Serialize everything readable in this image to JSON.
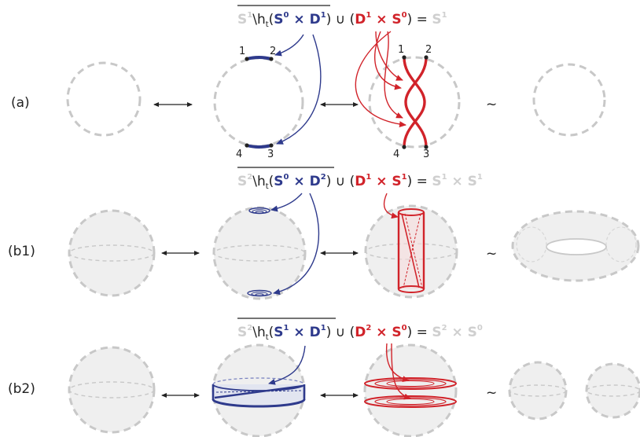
{
  "rows": [
    {
      "label": "(a)",
      "equation": {
        "complement_space": "S",
        "complement_space_sup": "1",
        "setminus": "\\h",
        "h_sub": "t",
        "removed_open": "(",
        "removed_factor1": "S",
        "removed_factor1_sup": "0",
        "removed_times": " × ",
        "removed_factor2": "D",
        "removed_factor2_sup": "1",
        "removed_close": ")",
        "union": " ∪ (",
        "glued_factor1": "D",
        "glued_factor1_sup": "1",
        "glued_times": " × ",
        "glued_factor2": "S",
        "glued_factor2_sup": "0",
        "glued_close": ")",
        "equals": " = ",
        "result": "S",
        "result_sup": "1"
      },
      "points_left": [
        "1",
        "2",
        "4",
        "3"
      ],
      "points_right": [
        "1",
        "2",
        "4",
        "3"
      ]
    },
    {
      "label": "(b1)",
      "equation": {
        "complement_space": "S",
        "complement_space_sup": "2",
        "setminus": "\\h",
        "h_sub": "t",
        "removed_open": "(",
        "removed_factor1": "S",
        "removed_factor1_sup": "0",
        "removed_times": " × ",
        "removed_factor2": "D",
        "removed_factor2_sup": "2",
        "removed_close": ")",
        "union": " ∪ (",
        "glued_factor1": "D",
        "glued_factor1_sup": "1",
        "glued_times": " × ",
        "glued_factor2": "S",
        "glued_factor2_sup": "1",
        "glued_close": ")",
        "equals": " = ",
        "result": "S",
        "result_sup": "1",
        "result_times": " × ",
        "result2": "S",
        "result2_sup": "1"
      }
    },
    {
      "label": "(b2)",
      "equation": {
        "complement_space": "S",
        "complement_space_sup": "2",
        "setminus": "\\h",
        "h_sub": "t",
        "removed_open": "(",
        "removed_factor1": "S",
        "removed_factor1_sup": "1",
        "removed_times": " × ",
        "removed_factor2": "D",
        "removed_factor2_sup": "1",
        "removed_close": ")",
        "union": " ∪ (",
        "glued_factor1": "D",
        "glued_factor1_sup": "2",
        "glued_times": " × ",
        "glued_factor2": "S",
        "glued_factor2_sup": "0",
        "glued_close": ")",
        "equals": " = ",
        "result": "S",
        "result_sup": "2",
        "result_times": " × ",
        "result2": "S",
        "result2_sup": "0"
      }
    }
  ],
  "symbols": {
    "homotopy": "~"
  },
  "colors": {
    "removed": "#2e3a8c",
    "glued": "#d1232a",
    "space": "#cfcfcf",
    "surface": "#efefef"
  }
}
